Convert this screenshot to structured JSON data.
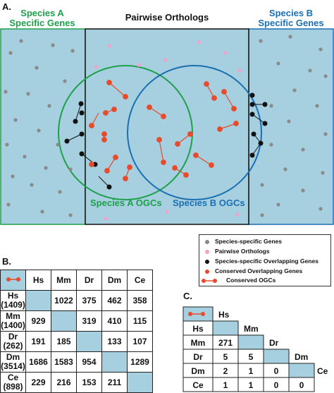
{
  "panels": {
    "a": "A.",
    "b": "B.",
    "c": "C."
  },
  "panel_a": {
    "species_a_header": [
      "Species A",
      "Specific Genes"
    ],
    "pairwise_header": "Pairwise Orthologs",
    "species_b_header": [
      "Species B",
      "Specific Genes"
    ],
    "venn_a_label": "Species A OGCs",
    "venn_b_label": "Species B OGCs",
    "colors": {
      "bg": "#a6cfe0",
      "species_a": "#1ea04b",
      "species_b": "#1b6fb3",
      "grey_dot": "#8a8a8a",
      "pink_dot": "#f3a3c8",
      "red": "#e84b2c",
      "black": "#111111"
    }
  },
  "legend": {
    "items": [
      {
        "label": "Species-specific Genes",
        "marker": "grey-dot"
      },
      {
        "label": "Pairwise Orthologs",
        "marker": "pink-dot"
      },
      {
        "label": "Species-specific Overlapping Genes",
        "marker": "black-dot"
      },
      {
        "label": "Conserved Overlapping Genes",
        "marker": "red-dot"
      },
      {
        "label": "Conserved OGCs",
        "marker": "red-dumbbell"
      }
    ]
  },
  "table_b": {
    "columns": [
      "Hs",
      "Mm",
      "Dr",
      "Dm",
      "Ce"
    ],
    "rows": [
      {
        "name": "Hs",
        "count": "(1409)",
        "values": [
          "",
          "1022",
          "375",
          "462",
          "358"
        ]
      },
      {
        "name": "Mm",
        "count": "(1400)",
        "values": [
          "929",
          "",
          "319",
          "410",
          "115"
        ]
      },
      {
        "name": "Dr",
        "count": "(262)",
        "values": [
          "191",
          "185",
          "",
          "133",
          "107"
        ]
      },
      {
        "name": "Dm",
        "count": "(3514)",
        "values": [
          "1686",
          "1583",
          "954",
          "",
          "1289"
        ]
      },
      {
        "name": "Ce",
        "count": "(898)",
        "values": [
          "229",
          "216",
          "153",
          "211",
          ""
        ]
      }
    ]
  },
  "table_c": {
    "columns": [
      "Hs",
      "Mm",
      "Dr",
      "Dm",
      "Ce"
    ],
    "rows": [
      {
        "name": "Hs",
        "values": []
      },
      {
        "name": "Mm",
        "values": [
          "271"
        ]
      },
      {
        "name": "Dr",
        "values": [
          "5",
          "5"
        ]
      },
      {
        "name": "Dm",
        "values": [
          "2",
          "1",
          "0"
        ]
      },
      {
        "name": "Ce",
        "values": [
          "1",
          "1",
          "0",
          "0"
        ]
      }
    ]
  }
}
